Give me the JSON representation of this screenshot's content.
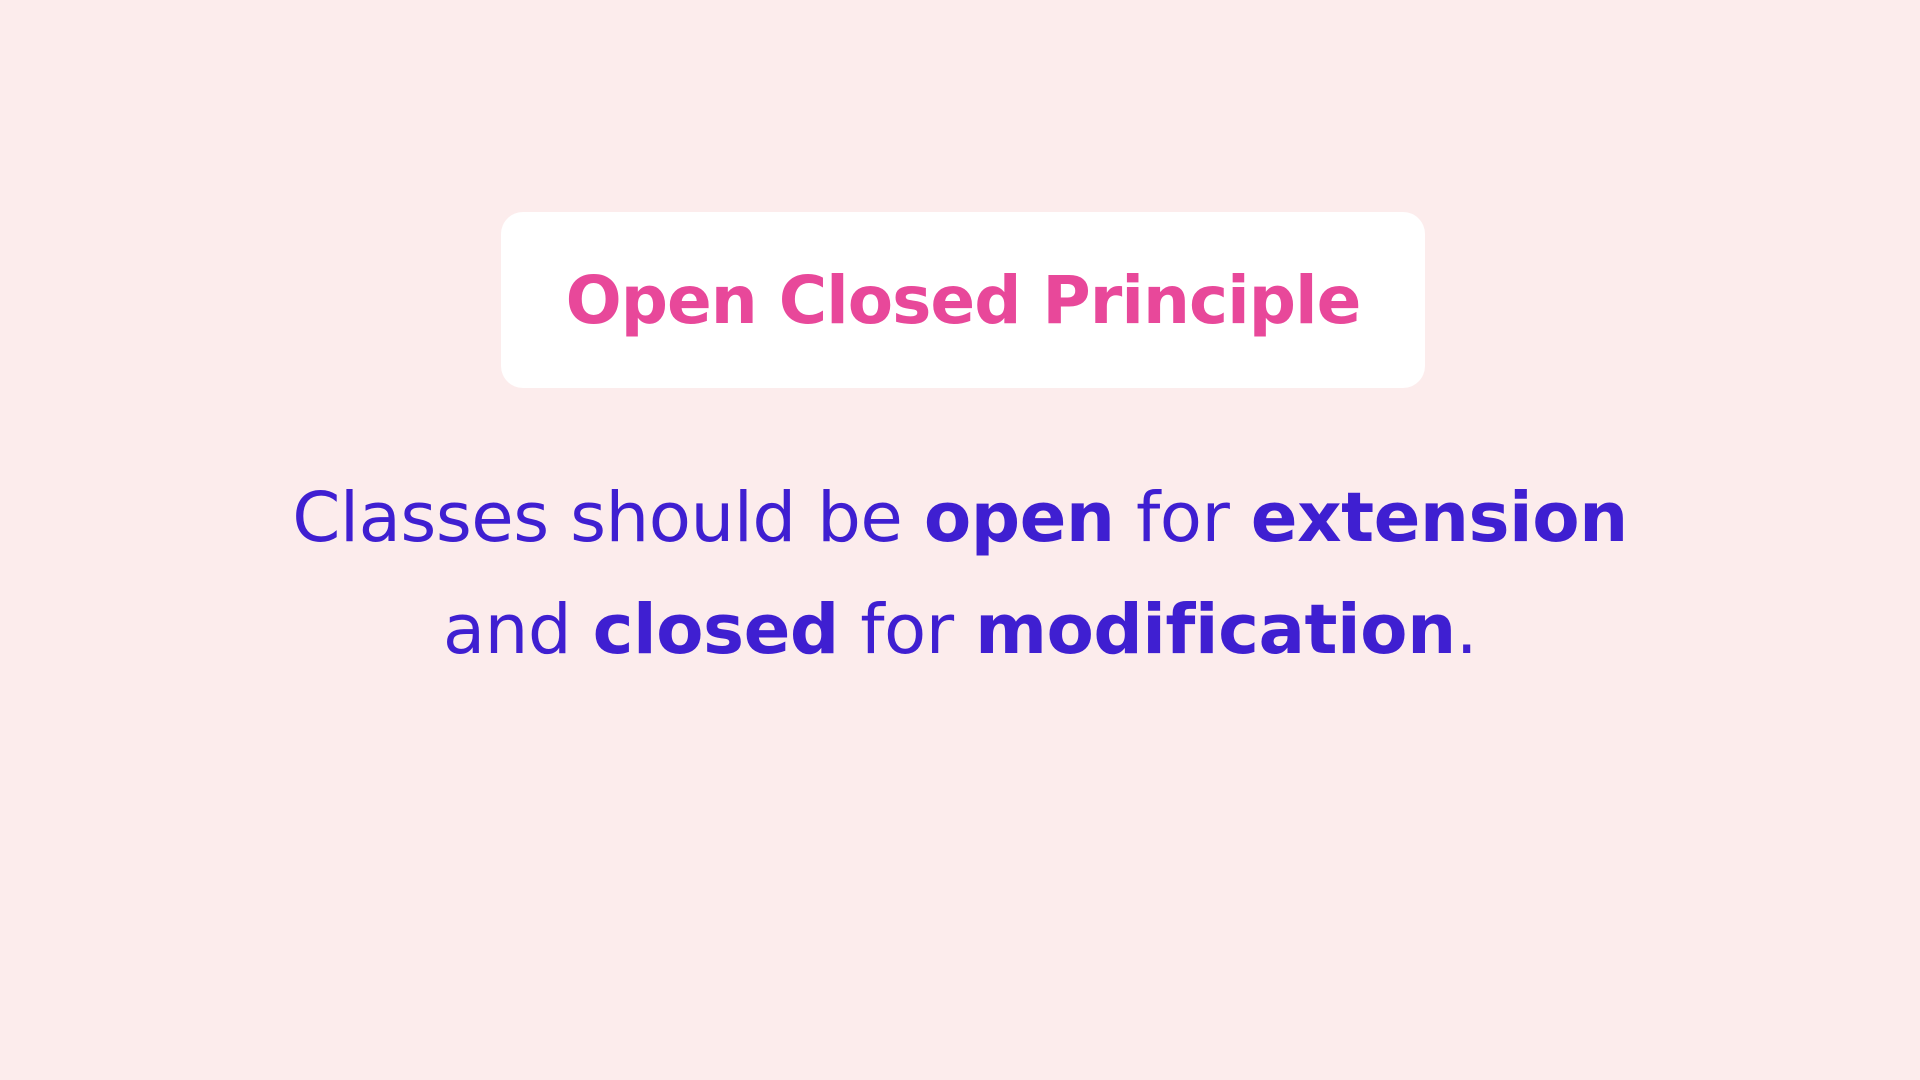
{
  "slide": {
    "title": "Open Closed Principle",
    "statement": {
      "line1": [
        {
          "text": "Classes should be ",
          "bold": false
        },
        {
          "text": "open",
          "bold": true
        },
        {
          "text": " for ",
          "bold": false
        },
        {
          "text": "extension",
          "bold": true
        }
      ],
      "line2": [
        {
          "text": "and ",
          "bold": false
        },
        {
          "text": "closed",
          "bold": true
        },
        {
          "text": " for ",
          "bold": false
        },
        {
          "text": "modification",
          "bold": true
        },
        {
          "text": ".",
          "bold": false
        }
      ]
    }
  },
  "colors": {
    "background": "#fcecec",
    "card": "#ffffff",
    "title": "#e8489a",
    "statement": "#3f1fd1"
  }
}
